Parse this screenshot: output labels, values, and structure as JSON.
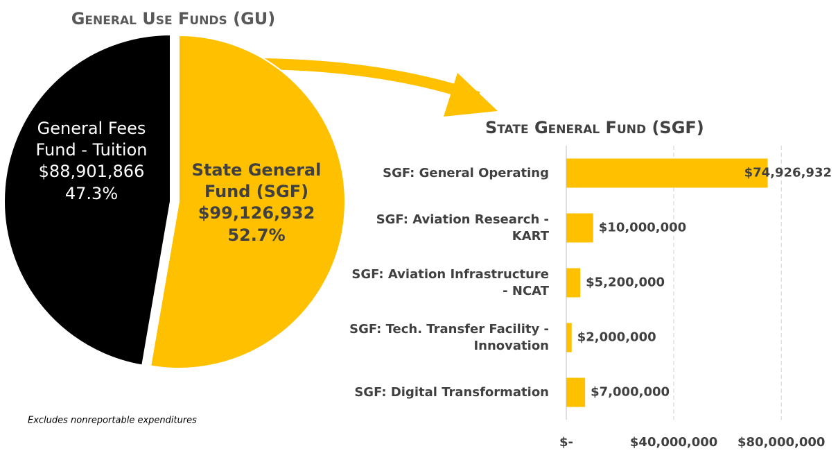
{
  "chart_data": [
    {
      "type": "pie",
      "title": "General Use Funds (GU)",
      "categories": [
        "General Fees Fund - Tuition",
        "State General Fund (SGF)"
      ],
      "values": [
        88901866,
        99126932
      ],
      "value_labels": [
        "$88,901,866",
        "$99,126,932"
      ],
      "percent_labels": [
        "47.3%",
        "52.7%"
      ],
      "colors": [
        "#000000",
        "#ffc000"
      ],
      "annotation": "Excludes nonreportable expenditures"
    },
    {
      "type": "hbar",
      "title": "State General Fund (SGF)",
      "categories": [
        "SGF: General Operating",
        "SGF: Aviation Research - KART",
        "SGF: Aviation Infrastructure - NCAT",
        "SGF: Tech. Transfer Facility - Innovation",
        "SGF: Digital Transformation"
      ],
      "values": [
        74926932,
        10000000,
        5200000,
        2000000,
        7000000
      ],
      "value_labels": [
        "$74,926,932",
        "$10,000,000",
        "$5,200,000",
        "$2,000,000",
        "$7,000,000"
      ],
      "color": "#ffc000",
      "xlim": [
        0,
        90000000
      ],
      "xticks": [
        {
          "value": 0,
          "label": "$-"
        },
        {
          "value": 40000000,
          "label": "$40,000,000"
        },
        {
          "value": 80000000,
          "label": "$80,000,000"
        }
      ],
      "grid": true
    }
  ]
}
